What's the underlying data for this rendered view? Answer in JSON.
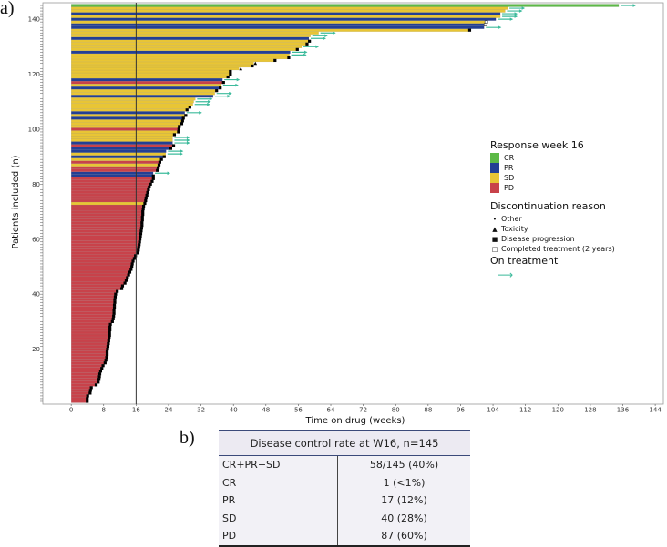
{
  "labels": {
    "a": "a)",
    "b": "b)"
  },
  "chart_data": {
    "type": "bar",
    "subtype": "swimmer",
    "xlabel": "Time on drug (weeks)",
    "ylabel": "Patients included (n)",
    "xlim": [
      -7,
      146
    ],
    "ylim": [
      0,
      146
    ],
    "xticks": [
      0,
      8,
      16,
      24,
      32,
      40,
      48,
      56,
      64,
      72,
      80,
      88,
      96,
      104,
      112,
      120,
      128,
      136,
      144
    ],
    "yticks": [
      20,
      40,
      60,
      80,
      100,
      120,
      140
    ],
    "reference_line_week": 16,
    "response_colors": {
      "C": "#5cb946",
      "R": "#233f94",
      "S": "#e8c535",
      "D": "#c8424a"
    },
    "arrow_color": "#3dbb9c",
    "durations": [
      3.7,
      3.7,
      3.8,
      4.4,
      4.5,
      4.7,
      5.9,
      6.4,
      6.6,
      6.7,
      6.8,
      7.0,
      7.3,
      7.6,
      8.1,
      8.3,
      8.5,
      8.6,
      8.6,
      8.7,
      8.8,
      8.9,
      9.0,
      9.1,
      9.2,
      9.2,
      9.3,
      9.3,
      9.4,
      9.9,
      10.1,
      10.2,
      10.3,
      10.3,
      10.4,
      10.4,
      10.5,
      10.5,
      10.6,
      10.7,
      11.1,
      12.2,
      12.4,
      13.0,
      13.3,
      13.6,
      13.9,
      14.2,
      14.5,
      14.7,
      14.8,
      15.0,
      15.3,
      15.6,
      16.2,
      16.3,
      16.4,
      16.5,
      16.6,
      16.7,
      16.8,
      16.9,
      17.0,
      17.1,
      17.2,
      17.2,
      17.3,
      17.3,
      17.4,
      17.4,
      17.5,
      17.6,
      17.9,
      18.1,
      18.2,
      18.4,
      18.6,
      18.8,
      19.0,
      19.3,
      19.7,
      20.0,
      20.0,
      20.2,
      21.0,
      21.2,
      21.4,
      21.6,
      22.0,
      22.7,
      23.3,
      23.4,
      24.3,
      25.0,
      25.0,
      25.0,
      25.0,
      25.2,
      26.2,
      26.3,
      26.4,
      27.0,
      27.2,
      27.4,
      28.0,
      28.0,
      28.3,
      29.0,
      30.0,
      30.2,
      30.6,
      35.0,
      35.4,
      35.6,
      36.5,
      37.0,
      37.3,
      37.3,
      38.4,
      39.0,
      39.0,
      41.4,
      44.4,
      45.0,
      50.0,
      53.4,
      53.8,
      54.0,
      55.5,
      56.8,
      57.9,
      58.5,
      58.6,
      59.0,
      61.0,
      98.0,
      101.8,
      101.8,
      102.0,
      104.7,
      105.8,
      105.8,
      107.0,
      107.6,
      135.0
    ],
    "responses": "DDDDDDDDDDDDDDDDDDDDDDDDDDDDDDDDDDDDDDDDDDDDDDDDDDDDDDDDDDDDDDDDDDDDDDDDSDDDDDDDDDRRDDSDSRSRRDRSSSSDSSSRSRSSSSSRSSRSDRSSSSSSSSSRSSSSRSSSRRSRSRSSC",
    "events": "PPPPPPPPPPPPPPPPPPPPPPPPPPPPPPPPPPPPPPPPPPPPPPPPPPPPPPPPPPPPPPPPPPPPPPPPPPPPPPPPPPPAPPPPPPAAPPAAAPPPPPPPPAPPAAAAAPPAPAPPPTPTPPAAPAPPAAAPACCAAAAAA"
  },
  "legend": {
    "response_title": "Response week 16",
    "responses": [
      {
        "code": "C",
        "label": "CR",
        "color": "#5cb946"
      },
      {
        "code": "R",
        "label": "PR",
        "color": "#233f94"
      },
      {
        "code": "S",
        "label": "SD",
        "color": "#e8c535"
      },
      {
        "code": "D",
        "label": "PD",
        "color": "#c8424a"
      }
    ],
    "discontinuation_title": "Discontinuation reason",
    "discontinuation": [
      {
        "symbol": "•",
        "label": "Other"
      },
      {
        "symbol": "▲",
        "label": "Toxicity"
      },
      {
        "symbol": "■",
        "label": "Disease progression"
      },
      {
        "symbol": "□",
        "label": "Completed treatment (2 years)"
      }
    ],
    "on_treatment_title": "On treatment",
    "on_treatment_symbol": "⟶"
  },
  "table": {
    "title": "Disease control rate at W16, n=145",
    "rows": [
      {
        "label": "CR+PR+SD",
        "value": "58/145 (40%)"
      },
      {
        "label": "CR",
        "value": "1 (<1%)"
      },
      {
        "label": "PR",
        "value": "17 (12%)"
      },
      {
        "label": "SD",
        "value": "40 (28%)"
      },
      {
        "label": "PD",
        "value": "87 (60%)"
      }
    ]
  }
}
